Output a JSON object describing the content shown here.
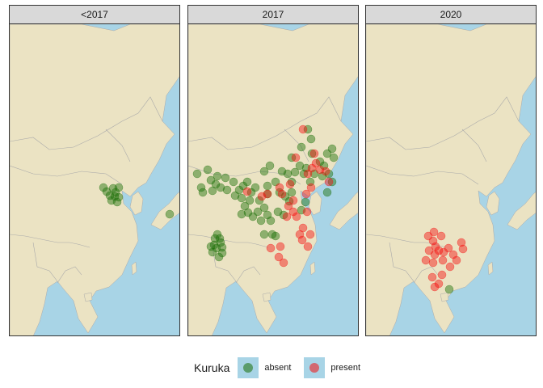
{
  "panels": [
    {
      "title": "<2017",
      "absent": [
        [
          127,
          232
        ],
        [
          139,
          233
        ],
        [
          146,
          232
        ],
        [
          131,
          237
        ],
        [
          142,
          238
        ],
        [
          135,
          242
        ],
        [
          146,
          244
        ],
        [
          137,
          248
        ],
        [
          144,
          250
        ],
        [
          141,
          243
        ],
        [
          209,
          265
        ]
      ],
      "present": []
    },
    {
      "title": "2017",
      "absent": [
        [
          380,
          160
        ],
        [
          384,
          172
        ],
        [
          372,
          182
        ],
        [
          385,
          190
        ],
        [
          410,
          184
        ],
        [
          404,
          190
        ],
        [
          412,
          195
        ],
        [
          400,
          205
        ],
        [
          406,
          215
        ],
        [
          410,
          225
        ],
        [
          404,
          238
        ],
        [
          395,
          200
        ],
        [
          398,
          218
        ],
        [
          383,
          225
        ],
        [
          388,
          215
        ],
        [
          375,
          215
        ],
        [
          378,
          208
        ],
        [
          370,
          205
        ],
        [
          360,
          195
        ],
        [
          364,
          213
        ],
        [
          355,
          215
        ],
        [
          360,
          225
        ],
        [
          348,
          212
        ],
        [
          333,
          205
        ],
        [
          326,
          212
        ],
        [
          340,
          225
        ],
        [
          330,
          230
        ],
        [
          345,
          238
        ],
        [
          360,
          238
        ],
        [
          352,
          243
        ],
        [
          357,
          249
        ],
        [
          243,
          215
        ],
        [
          256,
          210
        ],
        [
          268,
          218
        ],
        [
          278,
          220
        ],
        [
          288,
          225
        ],
        [
          300,
          230
        ],
        [
          310,
          238
        ],
        [
          320,
          248
        ],
        [
          330,
          240
        ],
        [
          315,
          232
        ],
        [
          305,
          225
        ],
        [
          295,
          235
        ],
        [
          298,
          245
        ],
        [
          290,
          242
        ],
        [
          280,
          235
        ],
        [
          266,
          228
        ],
        [
          260,
          223
        ],
        [
          248,
          232
        ],
        [
          250,
          238
        ],
        [
          262,
          236
        ],
        [
          272,
          232
        ],
        [
          302,
          255
        ],
        [
          306,
          263
        ],
        [
          312,
          268
        ],
        [
          322,
          273
        ],
        [
          318,
          262
        ],
        [
          298,
          265
        ],
        [
          308,
          248
        ],
        [
          326,
          257
        ],
        [
          330,
          266
        ],
        [
          334,
          273
        ],
        [
          343,
          262
        ],
        [
          350,
          266
        ],
        [
          340,
          292
        ],
        [
          336,
          290
        ],
        [
          326,
          290
        ],
        [
          265,
          295
        ],
        [
          272,
          300
        ],
        [
          267,
          307
        ],
        [
          274,
          313
        ],
        [
          262,
          312
        ],
        [
          270,
          318
        ],
        [
          264,
          303
        ],
        [
          271,
          295
        ],
        [
          268,
          290
        ],
        [
          274,
          306
        ],
        [
          260,
          305
        ],
        [
          372,
          260
        ],
        [
          377,
          250
        ]
      ],
      "present": [
        [
          374,
          160
        ],
        [
          388,
          190
        ],
        [
          390,
          202
        ],
        [
          395,
          210
        ],
        [
          402,
          212
        ],
        [
          406,
          225
        ],
        [
          385,
          208
        ],
        [
          380,
          215
        ],
        [
          365,
          195
        ],
        [
          358,
          228
        ],
        [
          345,
          232
        ],
        [
          348,
          240
        ],
        [
          330,
          240
        ],
        [
          356,
          255
        ],
        [
          362,
          262
        ],
        [
          354,
          268
        ],
        [
          366,
          268
        ],
        [
          370,
          290
        ],
        [
          373,
          297
        ],
        [
          346,
          305
        ],
        [
          344,
          318
        ],
        [
          350,
          325
        ],
        [
          334,
          307
        ],
        [
          379,
          262
        ],
        [
          384,
          232
        ],
        [
          383,
          290
        ],
        [
          380,
          305
        ],
        [
          374,
          282
        ],
        [
          305,
          237
        ],
        [
          323,
          243
        ],
        [
          362,
          248
        ],
        [
          378,
          240
        ]
      ]
    },
    {
      "title": "2020",
      "absent": [
        [
          555,
          358
        ]
      ],
      "present": [
        [
          536,
          287
        ],
        [
          529,
          292
        ],
        [
          535,
          298
        ],
        [
          545,
          292
        ],
        [
          538,
          305
        ],
        [
          542,
          310
        ],
        [
          530,
          310
        ],
        [
          526,
          322
        ],
        [
          535,
          325
        ],
        [
          547,
          322
        ],
        [
          554,
          307
        ],
        [
          570,
          300
        ],
        [
          572,
          308
        ],
        [
          560,
          315
        ],
        [
          556,
          330
        ],
        [
          546,
          340
        ],
        [
          534,
          343
        ],
        [
          537,
          355
        ],
        [
          542,
          351
        ],
        [
          564,
          322
        ],
        [
          537,
          315
        ],
        [
          548,
          312
        ]
      ]
    }
  ],
  "colors": {
    "absent": "#1a6e06",
    "present": "#f40f0f",
    "land": "#ebe3c3",
    "sea": "#a8d4e6",
    "border": "#aaaaaa"
  },
  "legend": {
    "title": "Kuruka",
    "items": [
      {
        "label": "absent"
      },
      {
        "label": "present"
      }
    ]
  }
}
